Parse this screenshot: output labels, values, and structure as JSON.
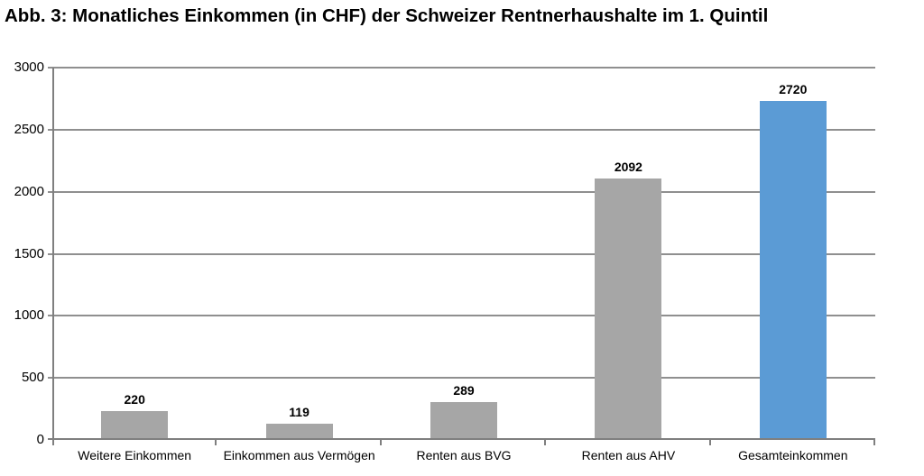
{
  "chart_data": {
    "type": "bar",
    "title": "Abb. 3: Monatliches Einkommen (in CHF) der Schweizer Rentnerhaushalte im 1. Quintil",
    "categories": [
      "Weitere Einkommen",
      "Einkommen aus Vermögen",
      "Renten aus BVG",
      "Renten aus AHV",
      "Gesamteinkommen"
    ],
    "values": [
      220,
      119,
      289,
      2092,
      2720
    ],
    "bar_colors": [
      "#a6a6a6",
      "#a6a6a6",
      "#a6a6a6",
      "#a6a6a6",
      "#5b9bd5"
    ],
    "yticks": [
      0,
      500,
      1000,
      1500,
      2000,
      2500,
      3000
    ],
    "ylim": [
      0,
      3000
    ],
    "xlabel": "",
    "ylabel": "",
    "grid": "horizontal",
    "legend": "none",
    "colors": {
      "bar_gray": "#a6a6a6",
      "bar_blue": "#5b9bd5",
      "gridline": "#8f8f8f",
      "axis": "#7f7f7f",
      "text": "#000000",
      "background": "#ffffff"
    }
  }
}
